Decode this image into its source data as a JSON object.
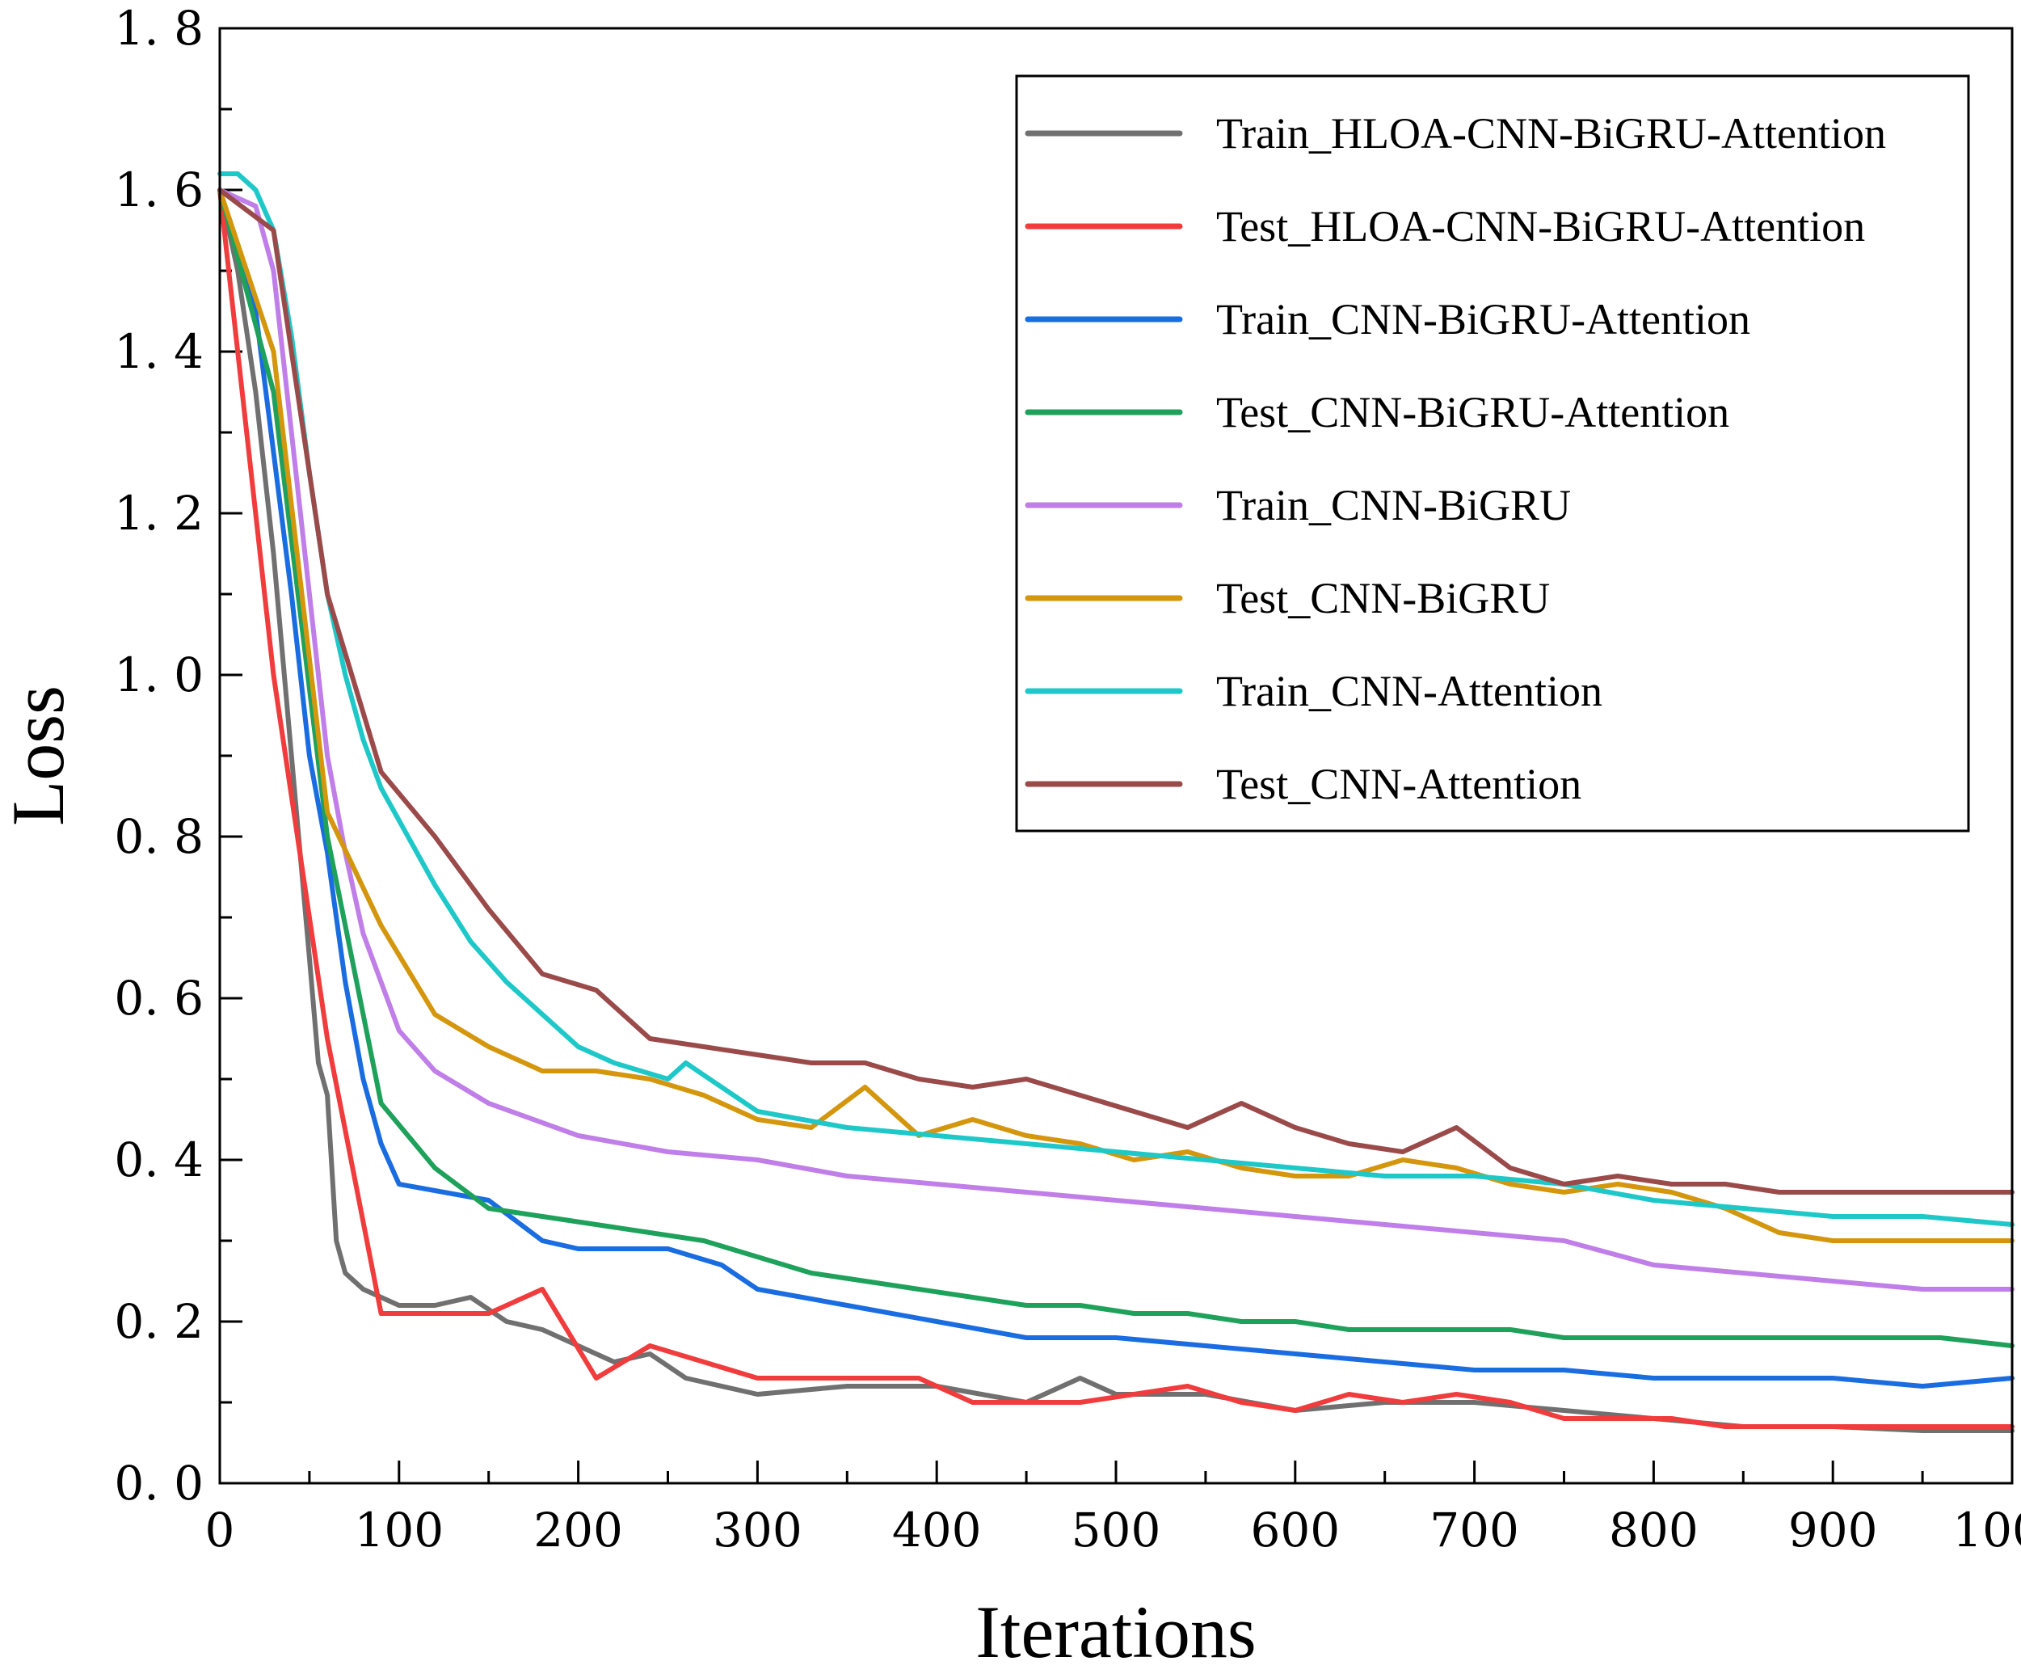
{
  "chart_data": {
    "type": "line",
    "title": "",
    "xlabel": "Iterations",
    "ylabel": "Loss",
    "xlim": [
      0,
      1000
    ],
    "ylim": [
      0.0,
      1.8
    ],
    "x_ticks": [
      0,
      100,
      200,
      300,
      400,
      500,
      600,
      700,
      800,
      900,
      1000
    ],
    "x_tick_labels": [
      "0",
      "100",
      "200",
      "300",
      "400",
      "500",
      "600",
      "700",
      "800",
      "900",
      "1000"
    ],
    "y_ticks": [
      0.0,
      0.2,
      0.4,
      0.6,
      0.8,
      1.0,
      1.2,
      1.4,
      1.6,
      1.8
    ],
    "y_tick_labels": [
      "0. 0",
      "0. 2",
      "0. 4",
      "0. 6",
      "0. 8",
      "1. 0",
      "1. 2",
      "1. 4",
      "1. 6",
      "1. 8"
    ],
    "grid": false,
    "legend_position": "top-right",
    "series": [
      {
        "name": "Train_HLOA-CNN-BiGRU-Attention",
        "color": "#707070",
        "x": [
          0,
          10,
          20,
          30,
          40,
          50,
          55,
          60,
          65,
          70,
          80,
          100,
          120,
          140,
          160,
          180,
          200,
          220,
          240,
          260,
          300,
          350,
          400,
          450,
          480,
          500,
          550,
          600,
          650,
          700,
          750,
          800,
          850,
          900,
          950,
          1000
        ],
        "y": [
          1.6,
          1.5,
          1.35,
          1.15,
          0.9,
          0.65,
          0.52,
          0.48,
          0.3,
          0.26,
          0.24,
          0.22,
          0.22,
          0.23,
          0.2,
          0.19,
          0.17,
          0.15,
          0.16,
          0.13,
          0.11,
          0.12,
          0.12,
          0.1,
          0.13,
          0.11,
          0.11,
          0.09,
          0.1,
          0.1,
          0.09,
          0.08,
          0.07,
          0.07,
          0.065,
          0.065
        ]
      },
      {
        "name": "Test_HLOA-CNN-BiGRU-Attention",
        "color": "#f03c3c",
        "x": [
          0,
          30,
          60,
          90,
          120,
          150,
          180,
          210,
          240,
          270,
          300,
          330,
          360,
          390,
          420,
          450,
          480,
          510,
          540,
          570,
          600,
          630,
          660,
          690,
          720,
          750,
          780,
          810,
          840,
          870,
          900,
          930,
          960,
          1000
        ],
        "y": [
          1.6,
          1.0,
          0.55,
          0.21,
          0.21,
          0.21,
          0.24,
          0.13,
          0.17,
          0.15,
          0.13,
          0.13,
          0.13,
          0.13,
          0.1,
          0.1,
          0.1,
          0.11,
          0.12,
          0.1,
          0.09,
          0.11,
          0.1,
          0.11,
          0.1,
          0.08,
          0.08,
          0.08,
          0.07,
          0.07,
          0.07,
          0.07,
          0.07,
          0.07
        ]
      },
      {
        "name": "Train_CNN-BiGRU-Attention",
        "color": "#1a6de0",
        "x": [
          0,
          20,
          40,
          50,
          60,
          70,
          80,
          90,
          100,
          150,
          180,
          200,
          250,
          280,
          300,
          350,
          400,
          450,
          500,
          550,
          600,
          650,
          700,
          750,
          800,
          850,
          900,
          950,
          1000
        ],
        "y": [
          1.6,
          1.45,
          1.1,
          0.9,
          0.78,
          0.62,
          0.5,
          0.42,
          0.37,
          0.35,
          0.3,
          0.29,
          0.29,
          0.27,
          0.24,
          0.22,
          0.2,
          0.18,
          0.18,
          0.17,
          0.16,
          0.15,
          0.14,
          0.14,
          0.13,
          0.13,
          0.13,
          0.12,
          0.13
        ]
      },
      {
        "name": "Test_CNN-BiGRU-Attention",
        "color": "#1ea15a",
        "x": [
          0,
          30,
          60,
          90,
          120,
          150,
          180,
          210,
          240,
          270,
          300,
          330,
          360,
          390,
          420,
          450,
          480,
          510,
          540,
          570,
          600,
          630,
          660,
          690,
          720,
          750,
          780,
          810,
          840,
          870,
          900,
          930,
          960,
          1000
        ],
        "y": [
          1.6,
          1.35,
          0.8,
          0.47,
          0.39,
          0.34,
          0.33,
          0.32,
          0.31,
          0.3,
          0.28,
          0.26,
          0.25,
          0.24,
          0.23,
          0.22,
          0.22,
          0.21,
          0.21,
          0.2,
          0.2,
          0.19,
          0.19,
          0.19,
          0.19,
          0.18,
          0.18,
          0.18,
          0.18,
          0.18,
          0.18,
          0.18,
          0.18,
          0.17
        ]
      },
      {
        "name": "Train_CNN-BiGRU",
        "color": "#c07ee8",
        "x": [
          0,
          20,
          30,
          40,
          50,
          60,
          70,
          80,
          90,
          100,
          120,
          150,
          200,
          250,
          300,
          350,
          400,
          450,
          500,
          550,
          600,
          650,
          700,
          750,
          800,
          850,
          900,
          950,
          1000
        ],
        "y": [
          1.6,
          1.58,
          1.5,
          1.3,
          1.1,
          0.9,
          0.78,
          0.68,
          0.62,
          0.56,
          0.51,
          0.47,
          0.43,
          0.41,
          0.4,
          0.38,
          0.37,
          0.36,
          0.35,
          0.34,
          0.33,
          0.32,
          0.31,
          0.3,
          0.27,
          0.26,
          0.25,
          0.24,
          0.24
        ]
      },
      {
        "name": "Test_CNN-BiGRU",
        "color": "#d4960d",
        "x": [
          0,
          30,
          60,
          90,
          120,
          150,
          180,
          210,
          240,
          270,
          300,
          330,
          360,
          390,
          420,
          450,
          480,
          510,
          540,
          570,
          600,
          630,
          660,
          690,
          720,
          750,
          780,
          810,
          840,
          870,
          900,
          930,
          960,
          1000
        ],
        "y": [
          1.6,
          1.4,
          0.83,
          0.69,
          0.58,
          0.54,
          0.51,
          0.51,
          0.5,
          0.48,
          0.45,
          0.44,
          0.49,
          0.43,
          0.45,
          0.43,
          0.42,
          0.4,
          0.41,
          0.39,
          0.38,
          0.38,
          0.4,
          0.39,
          0.37,
          0.36,
          0.37,
          0.36,
          0.34,
          0.31,
          0.3,
          0.3,
          0.3,
          0.3
        ]
      },
      {
        "name": "Train_CNN-Attention",
        "color": "#1ec8c8",
        "x": [
          0,
          10,
          20,
          30,
          40,
          50,
          60,
          70,
          80,
          90,
          100,
          120,
          140,
          160,
          180,
          200,
          220,
          250,
          260,
          280,
          300,
          350,
          400,
          450,
          500,
          550,
          600,
          650,
          700,
          750,
          800,
          850,
          900,
          950,
          1000
        ],
        "y": [
          1.62,
          1.62,
          1.6,
          1.55,
          1.42,
          1.25,
          1.1,
          1.0,
          0.92,
          0.86,
          0.82,
          0.74,
          0.67,
          0.62,
          0.58,
          0.54,
          0.52,
          0.5,
          0.52,
          0.49,
          0.46,
          0.44,
          0.43,
          0.42,
          0.41,
          0.4,
          0.39,
          0.38,
          0.38,
          0.37,
          0.35,
          0.34,
          0.33,
          0.33,
          0.32
        ]
      },
      {
        "name": "Test_CNN-Attention",
        "color": "#9b4a4a",
        "x": [
          0,
          30,
          60,
          90,
          120,
          150,
          180,
          210,
          240,
          270,
          300,
          330,
          360,
          390,
          420,
          450,
          480,
          510,
          540,
          570,
          600,
          630,
          660,
          690,
          720,
          750,
          780,
          810,
          840,
          870,
          900,
          930,
          960,
          1000
        ],
        "y": [
          1.6,
          1.55,
          1.1,
          0.88,
          0.8,
          0.71,
          0.63,
          0.61,
          0.55,
          0.54,
          0.53,
          0.52,
          0.52,
          0.5,
          0.49,
          0.5,
          0.48,
          0.46,
          0.44,
          0.47,
          0.44,
          0.42,
          0.41,
          0.44,
          0.39,
          0.37,
          0.38,
          0.37,
          0.37,
          0.36,
          0.36,
          0.36,
          0.36,
          0.36
        ]
      }
    ]
  }
}
